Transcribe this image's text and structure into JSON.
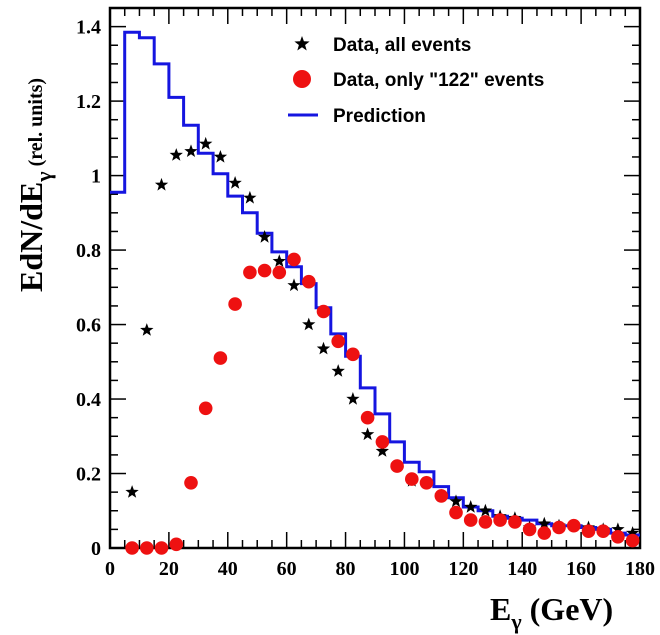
{
  "chart_data": {
    "type": "scatter",
    "xlabel": {
      "main": "E",
      "sub": "γ",
      "unit": " (GeV)"
    },
    "ylabel": {
      "main": "EdN/dE",
      "sub": "γ",
      "unit": " (rel. units)"
    },
    "xlim": [
      0,
      180
    ],
    "ylim": [
      0,
      1.45
    ],
    "x_ticks": [
      0,
      20,
      40,
      60,
      80,
      100,
      120,
      140,
      160,
      180
    ],
    "x_tick_labels": [
      "0",
      "20",
      "40",
      "60",
      "80",
      "100",
      "120",
      "140",
      "160",
      "180"
    ],
    "y_ticks": [
      0,
      0.2,
      0.4,
      0.6,
      0.8,
      1.0,
      1.2,
      1.4
    ],
    "y_tick_labels": [
      "0",
      "0.2",
      "0.4",
      "0.6",
      "0.8",
      "1",
      "1.2",
      "1.4"
    ],
    "grid": false,
    "legend_position": "top-right",
    "series": [
      {
        "name": "Data, all events",
        "marker": "star",
        "color": "#000000",
        "x": [
          7.5,
          12.5,
          17.5,
          22.5,
          27.5,
          32.5,
          37.5,
          42.5,
          47.5,
          52.5,
          57.5,
          62.5,
          67.5,
          72.5,
          77.5,
          82.5,
          87.5,
          92.5,
          97.5,
          102.5,
          107.5,
          112.5,
          117.5,
          122.5,
          127.5,
          132.5,
          137.5,
          142.5,
          147.5,
          152.5,
          157.5,
          162.5,
          167.5,
          172.5,
          177.5
        ],
        "y": [
          0.15,
          0.585,
          0.975,
          1.055,
          1.065,
          1.085,
          1.05,
          0.98,
          0.94,
          0.835,
          0.77,
          0.705,
          0.6,
          0.535,
          0.475,
          0.4,
          0.305,
          0.26,
          0.22,
          0.18,
          0.175,
          0.14,
          0.125,
          0.11,
          0.1,
          0.085,
          0.08,
          0.055,
          0.065,
          0.06,
          0.06,
          0.055,
          0.05,
          0.05,
          0.04
        ]
      },
      {
        "name": "Data, only \"122\" events",
        "marker": "circle",
        "color": "#ee1111",
        "x": [
          7.5,
          12.5,
          17.5,
          22.5,
          27.5,
          32.5,
          37.5,
          42.5,
          47.5,
          52.5,
          57.5,
          62.5,
          67.5,
          72.5,
          77.5,
          82.5,
          87.5,
          92.5,
          97.5,
          102.5,
          107.5,
          112.5,
          117.5,
          122.5,
          127.5,
          132.5,
          137.5,
          142.5,
          147.5,
          152.5,
          157.5,
          162.5,
          167.5,
          172.5,
          177.5
        ],
        "y": [
          0.0,
          0.0,
          0.0,
          0.01,
          0.175,
          0.375,
          0.51,
          0.655,
          0.74,
          0.745,
          0.74,
          0.775,
          0.715,
          0.635,
          0.555,
          0.52,
          0.35,
          0.285,
          0.22,
          0.185,
          0.175,
          0.14,
          0.095,
          0.075,
          0.07,
          0.075,
          0.07,
          0.05,
          0.04,
          0.055,
          0.06,
          0.045,
          0.045,
          0.03,
          0.02
        ]
      },
      {
        "name": "Prediction",
        "marker": "step",
        "color": "#1515e0",
        "bin_edges": [
          0,
          5,
          10,
          15,
          20,
          25,
          30,
          35,
          40,
          45,
          50,
          55,
          60,
          65,
          70,
          75,
          80,
          85,
          90,
          95,
          100,
          105,
          110,
          115,
          120,
          125,
          130,
          135,
          140,
          145,
          150,
          155,
          160,
          165,
          170,
          175,
          180
        ],
        "values": [
          0.955,
          1.385,
          1.37,
          1.3,
          1.21,
          1.135,
          1.06,
          1.005,
          0.945,
          0.9,
          0.845,
          0.795,
          0.755,
          0.71,
          0.645,
          0.575,
          0.515,
          0.43,
          0.36,
          0.285,
          0.23,
          0.205,
          0.165,
          0.135,
          0.11,
          0.1,
          0.085,
          0.08,
          0.075,
          0.065,
          0.06,
          0.06,
          0.055,
          0.05,
          0.04,
          0.035
        ]
      }
    ]
  }
}
